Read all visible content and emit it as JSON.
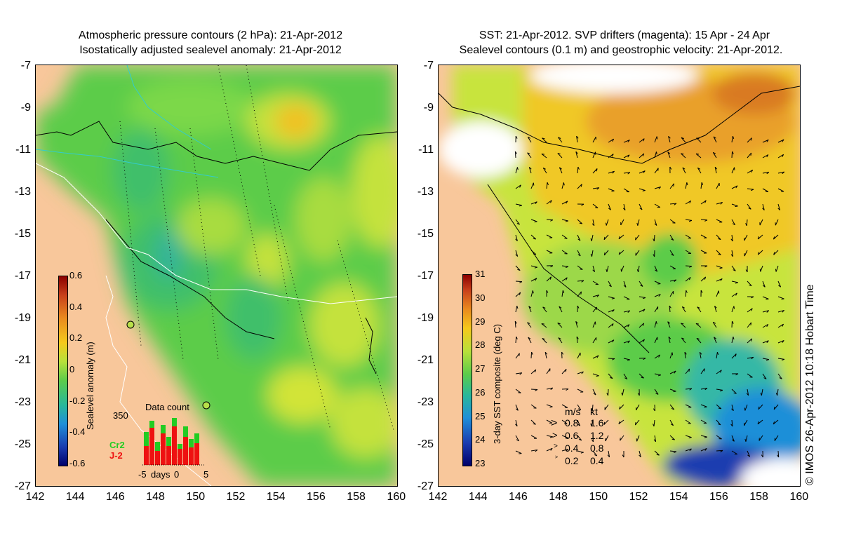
{
  "left_panel": {
    "title_line1": "Atmospheric pressure contours (2 hPa): 21-Apr-2012",
    "title_line2": "Isostatically adjusted sealevel anomaly: 21-Apr-2012",
    "colorbar_label": "Sealevel anomaly (m)",
    "colorbar_ticks": [
      "0.6",
      "0.4",
      "0.2",
      "0",
      "-0.2",
      "-0.4",
      "-0.6"
    ],
    "inset": {
      "title": "Data count",
      "ymax_label": "350",
      "xlabel": "days",
      "xticks": [
        "-5",
        "0",
        "5"
      ],
      "series": [
        {
          "name": "Cr2",
          "color": "#22cc22"
        },
        {
          "name": "J-2",
          "color": "#ee1111"
        }
      ]
    }
  },
  "right_panel": {
    "title_line1": "SST: 21-Apr-2012. SVP drifters (magenta): 15 Apr - 24 Apr",
    "title_line2": "Sealevel contours (0.1 m) and geostrophic velocity: 21-Apr-2012.",
    "colorbar_label": "3-day SST composite (deg C)",
    "colorbar_ticks": [
      "31",
      "30",
      "29",
      "28",
      "27",
      "26",
      "25",
      "24",
      "23"
    ],
    "velocity_legend": {
      "header_ms": "m/s",
      "header_kt": "kt",
      "rows": [
        {
          "ms": "0.8",
          "kt": "1.6"
        },
        {
          "ms": "0.6",
          "kt": "1.2"
        },
        {
          "ms": "0.4",
          "kt": "0.8"
        },
        {
          "ms": "0.2",
          "kt": "0.4"
        }
      ]
    }
  },
  "axes": {
    "y_ticks": [
      "-7",
      "-9",
      "-11",
      "-13",
      "-15",
      "-17",
      "-19",
      "-21",
      "-23",
      "-25",
      "-27"
    ],
    "x_ticks": [
      "142",
      "144",
      "146",
      "148",
      "150",
      "152",
      "154",
      "156",
      "158",
      "160"
    ]
  },
  "credit": "© IMOS 26-Apr-2012 10:18 Hobart Time"
}
